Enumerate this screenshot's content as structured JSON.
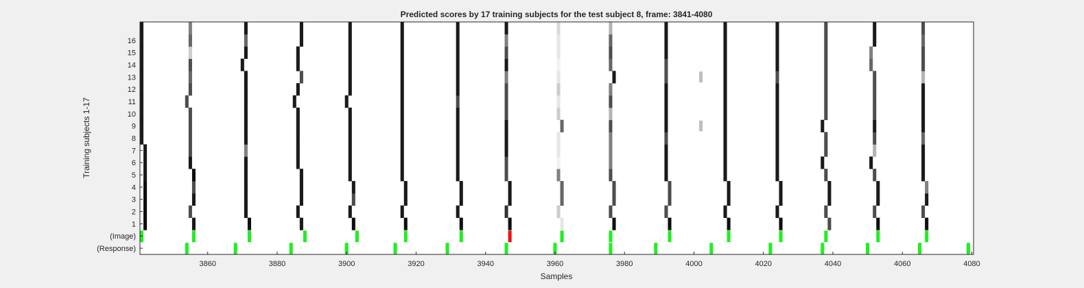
{
  "chart_data": {
    "type": "heatmap",
    "title": "Predicted scores by 17 training subjects for the test subject 8, frame: 3841-4080",
    "xlabel": "Samples",
    "ylabel": "Training subjects 1-17",
    "xlim": [
      3841,
      4080
    ],
    "x_ticks": [
      3860,
      3880,
      3900,
      3920,
      3940,
      3960,
      3980,
      4000,
      4020,
      4040,
      4060,
      4080
    ],
    "y_ticks": [
      "16",
      "15",
      "14",
      "13",
      "12",
      "11",
      "10",
      "9",
      "8",
      "7",
      "6",
      "5",
      "4",
      "3",
      "2",
      "1",
      "(Image)",
      "(Response)"
    ],
    "grid": false,
    "colors": {
      "image_marker": "#22ee22",
      "response_marker": "#22ee22",
      "mismatch_marker": "#ee1111",
      "score_high": "#000000",
      "score_low": "#ffffff"
    },
    "image_row": {
      "samples": [
        3841,
        3856,
        3872,
        3888,
        3903,
        3917,
        3933,
        3947,
        3962,
        3976,
        3993,
        4010,
        4025,
        4038,
        4053,
        4067
      ],
      "mismatch_sample": 3947
    },
    "response_row": {
      "samples": [
        3854,
        3868,
        3884,
        3900,
        3914,
        3929,
        3946,
        3960,
        3976,
        3989,
        4005,
        4022,
        4037,
        4050,
        4065,
        4079
      ]
    },
    "score_traces": [
      {
        "subject_1_17": [
          3842,
          3842,
          3842,
          3842,
          3842,
          3842,
          3842,
          3841,
          3841,
          3841,
          3841,
          3841,
          3841,
          3841,
          3841,
          3841,
          3841
        ],
        "gray_0_1": [
          0.05,
          0.05,
          0.05,
          0.05,
          0.1,
          0.1,
          0.1,
          0.1,
          0.1,
          0.1,
          0.1,
          0.1,
          0.1,
          0.1,
          0.1,
          0.1,
          0.1
        ]
      },
      {
        "subject_1_17": [
          3856,
          3855,
          3856,
          3856,
          3856,
          3855,
          3855,
          3855,
          3855,
          3855,
          3854,
          3855,
          3855,
          3855,
          3855,
          3855,
          3855
        ],
        "gray_0_1": [
          0.1,
          0.3,
          0.1,
          0.3,
          0.05,
          0.1,
          0.3,
          0.3,
          0.3,
          0.3,
          0.3,
          0.3,
          0.4,
          0.3,
          0.8,
          0.4,
          0.5
        ]
      },
      {
        "subject_1_17": [
          3872,
          3871,
          3871,
          3871,
          3871,
          3871,
          3871,
          3871,
          3871,
          3871,
          3871,
          3871,
          3871,
          3870,
          3871,
          3871,
          3871
        ],
        "gray_0_1": [
          0.05,
          0.1,
          0.1,
          0.1,
          0.1,
          0.1,
          0.5,
          0.1,
          0.1,
          0.1,
          0.1,
          0.1,
          0.1,
          0.1,
          0.1,
          0.4,
          0.1
        ]
      },
      {
        "subject_1_17": [
          3887,
          3886,
          3887,
          3887,
          3887,
          3886,
          3886,
          3886,
          3886,
          3886,
          3885,
          3886,
          3887,
          3886,
          3886,
          3887,
          3887
        ],
        "gray_0_1": [
          0.1,
          0.1,
          0.1,
          0.1,
          0.1,
          0.1,
          0.1,
          0.1,
          0.1,
          0.1,
          0.1,
          0.1,
          0.3,
          0.1,
          0.1,
          0.1,
          0.1
        ]
      },
      {
        "subject_1_17": [
          3902,
          3901,
          3902,
          3902,
          3901,
          3901,
          3901,
          3901,
          3901,
          3901,
          3900,
          3901,
          3901,
          3901,
          3901,
          3901,
          3901
        ],
        "gray_0_1": [
          0.05,
          0.1,
          0.3,
          0.1,
          0.1,
          0.1,
          0.1,
          0.1,
          0.1,
          0.1,
          0.1,
          0.1,
          0.1,
          0.1,
          0.1,
          0.1,
          0.1
        ]
      },
      {
        "subject_1_17": [
          3917,
          3916,
          3917,
          3917,
          3916,
          3916,
          3916,
          3916,
          3916,
          3916,
          3916,
          3916,
          3916,
          3916,
          3916,
          3916,
          3916
        ],
        "gray_0_1": [
          0.05,
          0.1,
          0.1,
          0.1,
          0.1,
          0.1,
          0.1,
          0.1,
          0.1,
          0.1,
          0.1,
          0.1,
          0.1,
          0.1,
          0.1,
          0.1,
          0.1
        ]
      },
      {
        "subject_1_17": [
          3933,
          3932,
          3933,
          3933,
          3932,
          3932,
          3932,
          3932,
          3932,
          3932,
          3932,
          3932,
          3932,
          3932,
          3932,
          3932,
          3932
        ],
        "gray_0_1": [
          0.05,
          0.1,
          0.1,
          0.1,
          0.1,
          0.1,
          0.1,
          0.1,
          0.1,
          0.1,
          0.3,
          0.1,
          0.1,
          0.1,
          0.1,
          0.1,
          0.1
        ]
      },
      {
        "subject_1_17": [
          3947,
          3946,
          3947,
          3947,
          3946,
          3946,
          3946,
          3946,
          3946,
          3946,
          3946,
          3946,
          3946,
          3946,
          3946,
          3946,
          3946
        ],
        "gray_0_1": [
          0.05,
          0.2,
          0.1,
          0.1,
          0.3,
          0.3,
          0.1,
          0.1,
          0.1,
          0.3,
          0.3,
          0.3,
          0.5,
          0.1,
          0.3,
          0.5,
          0.1
        ]
      },
      {
        "subject_1_17": [
          3962,
          3961,
          3962,
          3962,
          3961,
          3961,
          3961,
          3961,
          3962,
          3961,
          3961,
          3961,
          3961,
          3961,
          3961,
          3961,
          3961
        ],
        "gray_0_1": [
          0.9,
          0.8,
          0.4,
          0.4,
          0.5,
          0.95,
          0.9,
          0.9,
          0.4,
          0.8,
          0.9,
          0.8,
          0.9,
          0.95,
          0.9,
          0.9,
          0.85
        ]
      },
      {
        "subject_1_17": [
          3977,
          3976,
          3977,
          3977,
          3976,
          3976,
          3976,
          3976,
          3976,
          3976,
          3976,
          3976,
          3977,
          3976,
          3976,
          3976,
          3976
        ],
        "gray_0_1": [
          0.05,
          0.3,
          0.3,
          0.3,
          0.3,
          0.5,
          0.5,
          0.5,
          0.3,
          0.7,
          0.3,
          0.5,
          0.1,
          0.4,
          0.3,
          0.4,
          0.7
        ]
      },
      {
        "subject_1_17": [
          3993,
          3992,
          3993,
          3993,
          3992,
          3992,
          3992,
          3992,
          3992,
          3992,
          3992,
          3992,
          3992,
          3992,
          3992,
          3992,
          3992
        ],
        "gray_0_1": [
          0.05,
          0.3,
          0.3,
          0.3,
          0.1,
          0.1,
          0.1,
          0.3,
          0.1,
          0.1,
          0.1,
          0.1,
          0.3,
          0.3,
          0.1,
          0.1,
          0.1
        ]
      },
      {
        "subject_1_17": [
          4010,
          4009,
          4010,
          4010,
          4009,
          4009,
          4009,
          4009,
          4009,
          4009,
          4009,
          4009,
          4009,
          4009,
          4009,
          4009,
          4009
        ],
        "gray_0_1": [
          0.05,
          0.1,
          0.1,
          0.1,
          0.1,
          0.1,
          0.1,
          0.1,
          0.1,
          0.1,
          0.1,
          0.1,
          0.1,
          0.1,
          0.1,
          0.1,
          0.1
        ]
      },
      {
        "subject_1_17": [
          4025,
          4024,
          4025,
          4025,
          4024,
          4024,
          4024,
          4024,
          4024,
          4024,
          4024,
          4024,
          4024,
          4024,
          4024,
          4024,
          4024
        ],
        "gray_0_1": [
          0.05,
          0.1,
          0.1,
          0.1,
          0.1,
          0.1,
          0.1,
          0.1,
          0.1,
          0.1,
          0.1,
          0.1,
          0.3,
          0.1,
          0.1,
          0.1,
          0.1
        ]
      },
      {
        "subject_1_17": [
          4039,
          4038,
          4039,
          4039,
          4038,
          4037,
          4038,
          4038,
          4037,
          4038,
          4038,
          4038,
          4038,
          4038,
          4038,
          4038,
          4038
        ],
        "gray_0_1": [
          0.3,
          0.3,
          0.1,
          0.1,
          0.3,
          0.1,
          0.3,
          0.3,
          0.1,
          0.3,
          0.3,
          0.3,
          0.3,
          0.3,
          0.3,
          0.3,
          0.3
        ]
      },
      {
        "subject_1_17": [
          4053,
          4052,
          4053,
          4053,
          4052,
          4051,
          4052,
          4052,
          4052,
          4052,
          4052,
          4052,
          4052,
          4051,
          4051,
          4052,
          4052
        ],
        "gray_0_1": [
          0.05,
          0.3,
          0.1,
          0.1,
          0.3,
          0.1,
          0.7,
          0.3,
          0.1,
          0.3,
          0.3,
          0.3,
          0.3,
          0.4,
          0.5,
          0.1,
          0.1
        ]
      },
      {
        "subject_1_17": [
          4067,
          4066,
          4067,
          4067,
          4066,
          4066,
          4066,
          4066,
          4066,
          4066,
          4066,
          4066,
          4066,
          4066,
          4066,
          4066,
          4066
        ],
        "gray_0_1": [
          0.05,
          0.3,
          0.1,
          0.5,
          0.1,
          0.1,
          0.1,
          0.4,
          0.1,
          0.1,
          0.1,
          0.1,
          0.7,
          0.3,
          0.3,
          0.4,
          0.3
        ]
      }
    ],
    "faint_blocks": [
      {
        "sample": 4002,
        "rows": [
          9,
          13
        ],
        "gray_0_1": 0.75
      }
    ]
  }
}
